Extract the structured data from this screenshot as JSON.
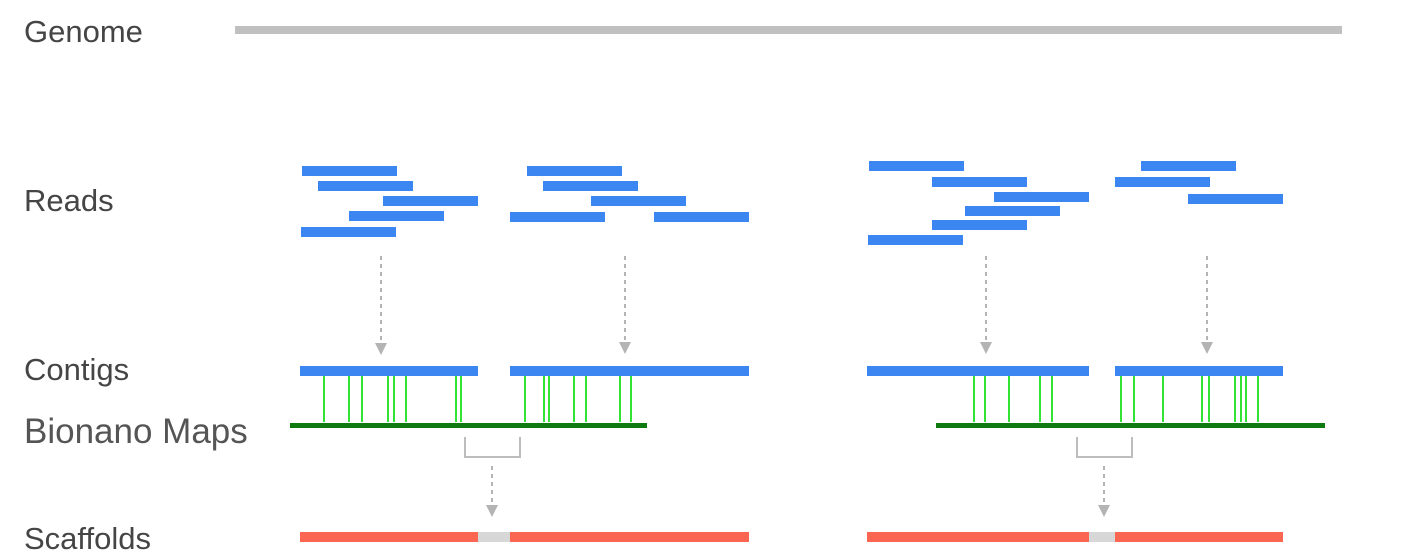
{
  "labels": {
    "genome": "Genome",
    "reads": "Reads",
    "contigs": "Contigs",
    "bionano_maps": "Bionano Maps",
    "scaffolds": "Scaffolds"
  },
  "colors": {
    "genome": "#c0c0c0",
    "read": "#3b86f0",
    "contig": "#3b86f0",
    "label_mark": "#33e333",
    "bionano_map": "#0f7a0f",
    "scaffold": "#fa6652",
    "gap": "#d7d7d7",
    "arrow": "#b4b4b4",
    "bracket": "#bdbdbd"
  }
}
